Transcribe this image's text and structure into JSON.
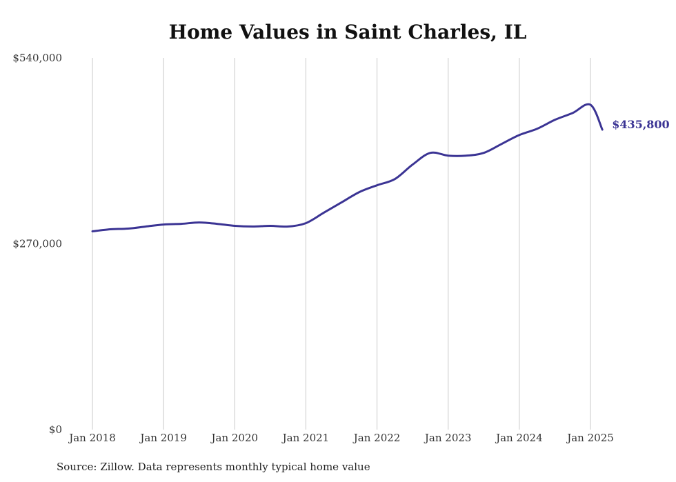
{
  "chart_data": {
    "type": "line",
    "title": "Home Values in Saint Charles, IL",
    "xlabel": "",
    "ylabel": "",
    "x_ticks": [
      "Jan 2018",
      "Jan 2019",
      "Jan 2020",
      "Jan 2021",
      "Jan 2022",
      "Jan 2023",
      "Jan 2024",
      "Jan 2025"
    ],
    "y_ticks": [
      {
        "value": 0,
        "label": "$0"
      },
      {
        "value": 270000,
        "label": "$270,000"
      },
      {
        "value": 540000,
        "label": "$540,000"
      }
    ],
    "ylim": [
      0,
      540000
    ],
    "xlim": [
      "2018-01",
      "2025-01"
    ],
    "grid": "vertical",
    "legend": "none",
    "line_color": "#3b3494",
    "end_label": "$435,800",
    "series": [
      {
        "x": [
          "2018-01",
          "2018-04",
          "2018-07",
          "2018-10",
          "2019-01",
          "2019-04",
          "2019-07",
          "2019-10",
          "2020-01",
          "2020-04",
          "2020-07",
          "2020-10",
          "2021-01",
          "2021-04",
          "2021-07",
          "2021-10",
          "2022-01",
          "2022-04",
          "2022-07",
          "2022-10",
          "2023-01",
          "2023-04",
          "2023-07",
          "2023-10",
          "2024-01",
          "2024-04",
          "2024-07",
          "2024-10",
          "2025-01",
          "2025-03"
        ],
        "y": [
          288000,
          291000,
          292000,
          295000,
          298000,
          299000,
          301000,
          299000,
          296000,
          295000,
          296000,
          295000,
          300000,
          315000,
          330000,
          345000,
          355000,
          364000,
          385000,
          402000,
          398000,
          398000,
          402000,
          415000,
          428000,
          437000,
          450000,
          460000,
          472000,
          435800
        ]
      }
    ]
  },
  "footer": {
    "source": "Source: Zillow. Data represents monthly typical home value"
  }
}
